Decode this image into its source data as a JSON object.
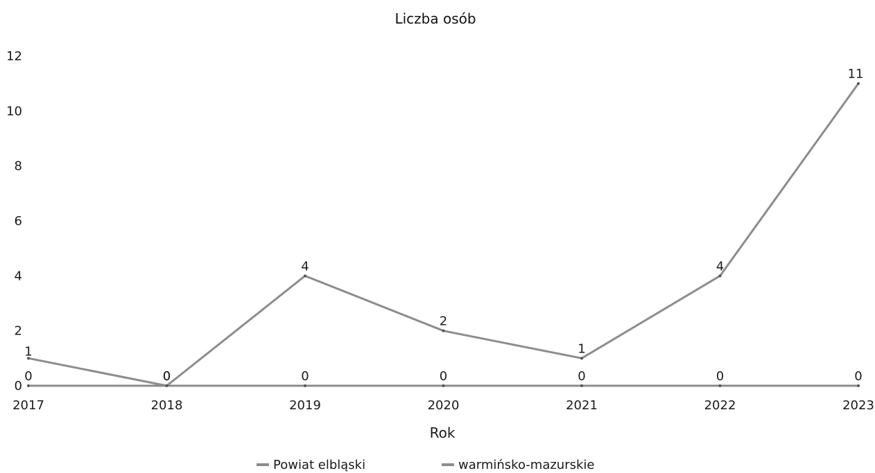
{
  "chart_data": {
    "type": "line",
    "title": "Liczba osób",
    "xlabel": "Rok",
    "ylabel": "",
    "categories": [
      "2017",
      "2018",
      "2019",
      "2020",
      "2021",
      "2022",
      "2023"
    ],
    "ylim": [
      0,
      12
    ],
    "yticks": [
      0,
      2,
      4,
      6,
      8,
      10,
      12
    ],
    "grid": false,
    "legend_position": "bottom",
    "series": [
      {
        "name": "Powiat elbląski",
        "values": [
          1,
          0,
          4,
          2,
          1,
          4,
          11
        ],
        "color": "#8c8c8c",
        "labels": [
          "1",
          "0",
          "4",
          "2",
          "1",
          "4",
          "11"
        ]
      },
      {
        "name": "warmińsko-mazurskie",
        "values": [
          0,
          0,
          0,
          0,
          0,
          0,
          0
        ],
        "color": "#8c8c8c",
        "labels": [
          "0",
          "0",
          "0",
          "0",
          "0",
          "0",
          "0"
        ]
      }
    ]
  }
}
